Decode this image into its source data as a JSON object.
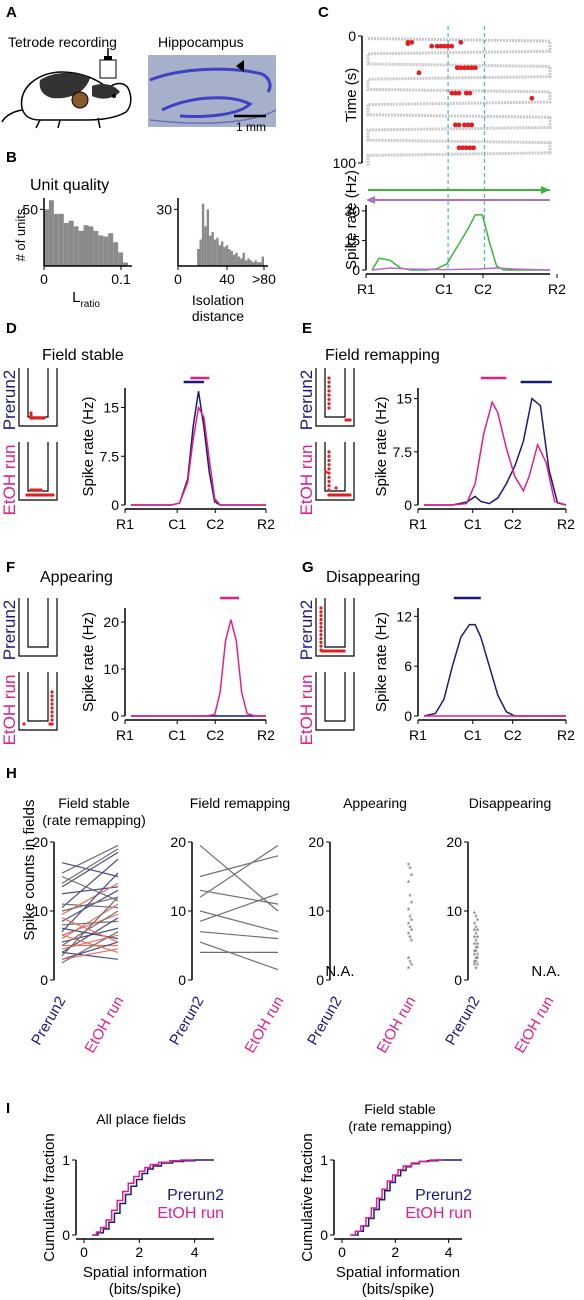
{
  "colors": {
    "prerun": "#1a1a7a",
    "etoh": "#e0208a",
    "bar": "#8a8a8a",
    "green": "#3cb43c",
    "violet": "#b070c0",
    "red": "#e02020",
    "cyan": "#40b8d8",
    "brain": "#4040c0"
  },
  "panelA": {
    "letter": "A",
    "tetrode": "Tetrode recording",
    "hippo": "Hippocampus",
    "scale": "1 mm"
  },
  "panelB": {
    "letter": "B",
    "title": "Unit quality",
    "ylabel": "# of units",
    "lratio_main": "L",
    "lratio_sub": "ratio",
    "iso1": "Isolation",
    "iso2": "distance"
  },
  "panelC": {
    "letter": "C",
    "ylabel_top": "Time (s)",
    "ylabel_bottom": "Spike rate (Hz)"
  },
  "panelD": {
    "letter": "D",
    "title": "Field stable"
  },
  "panelE": {
    "letter": "E",
    "title": "Field remapping"
  },
  "panelF": {
    "letter": "F",
    "title": "Appearing"
  },
  "panelG": {
    "letter": "G",
    "title": "Disappearing"
  },
  "panelH": {
    "letter": "H",
    "ylabel": "Spike counts in fields",
    "na": "N.A."
  },
  "panelI": {
    "letter": "I"
  },
  "labels": {
    "prerun": "Prerun2",
    "etoh": "EtOH run",
    "spike_rate": "Spike rate (Hz)",
    "track": [
      "R1",
      "C1",
      "C2",
      "R2"
    ]
  },
  "chart_data": [
    {
      "id": "B-left",
      "type": "bar",
      "xlabel": "Lratio",
      "ylabel": "# of units",
      "xticks": [
        "0",
        "0.1"
      ],
      "yticks": [
        "50"
      ],
      "ylim": [
        0,
        60
      ],
      "values": [
        50,
        58,
        46,
        46,
        38,
        40,
        35,
        31,
        36,
        35,
        31,
        27,
        26,
        29,
        21,
        12,
        3
      ]
    },
    {
      "id": "B-right",
      "type": "bar",
      "xlabel": "Isolation distance",
      "yticks": [
        "30"
      ],
      "xticks": [
        "0",
        "40",
        ">80"
      ],
      "ylim": [
        0,
        36
      ],
      "values": [
        0,
        0,
        0,
        0,
        0,
        0,
        0,
        0,
        9,
        14,
        33,
        21,
        30,
        16,
        18,
        14,
        15,
        11,
        13,
        10,
        11,
        9,
        8,
        6,
        7,
        5,
        4,
        7,
        3,
        4,
        3,
        2,
        3,
        2,
        2,
        5
      ]
    },
    {
      "id": "C-raster",
      "type": "scatter",
      "ylabel": "Time (s)",
      "yticks": [
        "0",
        "100"
      ],
      "ylim": [
        0,
        100
      ],
      "spikes": [
        [
          0.22,
          5
        ],
        [
          0.22,
          6
        ],
        [
          0.24,
          5
        ],
        [
          0.35,
          8
        ],
        [
          0.38,
          8
        ],
        [
          0.4,
          8
        ],
        [
          0.42,
          8
        ],
        [
          0.44,
          8
        ],
        [
          0.46,
          8
        ],
        [
          0.51,
          5
        ],
        [
          0.49,
          25
        ],
        [
          0.51,
          25
        ],
        [
          0.53,
          25
        ],
        [
          0.55,
          25
        ],
        [
          0.57,
          25
        ],
        [
          0.59,
          25
        ],
        [
          0.28,
          29
        ],
        [
          0.46,
          45
        ],
        [
          0.48,
          45
        ],
        [
          0.5,
          45
        ],
        [
          0.54,
          45
        ],
        [
          0.56,
          45
        ],
        [
          0.9,
          49
        ],
        [
          0.48,
          70
        ],
        [
          0.5,
          70
        ],
        [
          0.53,
          70
        ],
        [
          0.55,
          70
        ],
        [
          0.57,
          70
        ],
        [
          0.5,
          88
        ],
        [
          0.52,
          88
        ],
        [
          0.54,
          88
        ],
        [
          0.56,
          88
        ],
        [
          0.58,
          88
        ]
      ]
    },
    {
      "id": "C-rate",
      "type": "line",
      "ylabel": "Spike rate (Hz)",
      "yticks": [
        "0",
        "15",
        "30"
      ],
      "ylim": [
        0,
        33
      ],
      "xticks": [
        "R1",
        "C1",
        "C2",
        "R2"
      ],
      "series": [
        {
          "color": "green",
          "x": [
            0,
            0.04,
            0.1,
            0.16,
            0.22,
            0.3,
            0.36,
            0.42,
            0.48,
            0.54,
            0.58,
            0.62,
            0.66,
            0.7,
            0.74,
            0.8,
            0.88,
            1
          ],
          "y": [
            0,
            6,
            5,
            1,
            0,
            0,
            0.5,
            3,
            12,
            21,
            28,
            28,
            14,
            2,
            0,
            0,
            0,
            0
          ]
        },
        {
          "color": "violet",
          "x": [
            0,
            0.1,
            0.2,
            0.4,
            0.6,
            0.7,
            0.8,
            1
          ],
          "y": [
            0,
            1,
            0.5,
            0.2,
            0.5,
            1,
            0.5,
            0
          ]
        }
      ]
    },
    {
      "id": "D",
      "type": "line",
      "ylabel": "Spike rate (Hz)",
      "yticks": [
        "0",
        "7.5",
        "15"
      ],
      "ylim": [
        0,
        18
      ],
      "xticks": [
        "R1",
        "C1",
        "C2",
        "R2"
      ],
      "series": [
        {
          "name": "Prerun2",
          "x": [
            0,
            0.2,
            0.3,
            0.36,
            0.42,
            0.46,
            0.5,
            0.54,
            0.58,
            0.62,
            0.66,
            0.7,
            0.8,
            1
          ],
          "y": [
            0,
            0,
            0,
            0.3,
            4,
            12,
            17.5,
            12,
            5,
            0.5,
            0,
            0,
            0,
            0
          ]
        },
        {
          "name": "EtOH run",
          "x": [
            0,
            0.2,
            0.3,
            0.36,
            0.42,
            0.46,
            0.5,
            0.54,
            0.58,
            0.62,
            0.66,
            0.7,
            0.8,
            1
          ],
          "y": [
            0,
            0,
            0,
            0.3,
            3.5,
            10,
            15,
            13.5,
            7,
            1,
            0,
            0,
            0,
            0
          ]
        }
      ],
      "field_bars": [
        {
          "series": "Prerun2",
          "range": [
            0.39,
            0.54
          ]
        },
        {
          "series": "EtOH run",
          "range": [
            0.44,
            0.58
          ]
        }
      ]
    },
    {
      "id": "E",
      "type": "line",
      "ylabel": "Spike rate (Hz)",
      "yticks": [
        "0",
        "7.5",
        "15"
      ],
      "ylim": [
        0,
        16.5
      ],
      "xticks": [
        "R1",
        "C1",
        "C2",
        "R2"
      ],
      "series": [
        {
          "name": "Prerun2",
          "x": [
            0,
            0.2,
            0.3,
            0.36,
            0.4,
            0.46,
            0.52,
            0.58,
            0.64,
            0.7,
            0.76,
            0.82,
            0.88,
            0.94,
            1
          ],
          "y": [
            0,
            0,
            0.4,
            1.2,
            0.5,
            0.2,
            1,
            3,
            5.5,
            9,
            15,
            14,
            5,
            0.3,
            0
          ]
        },
        {
          "name": "EtOH run",
          "x": [
            0,
            0.2,
            0.3,
            0.36,
            0.42,
            0.48,
            0.52,
            0.58,
            0.64,
            0.7,
            0.74,
            0.8,
            0.86,
            0.92,
            1
          ],
          "y": [
            0,
            0,
            0.2,
            3,
            10,
            14.5,
            13,
            8,
            4,
            2,
            4,
            8.5,
            6,
            0.5,
            0
          ]
        }
      ],
      "field_bars": [
        {
          "series": "Prerun2",
          "range": [
            0.68,
            0.9
          ]
        },
        {
          "series": "EtOH run",
          "range": [
            0.4,
            0.58
          ]
        }
      ]
    },
    {
      "id": "F",
      "type": "line",
      "ylabel": "Spike rate (Hz)",
      "yticks": [
        "0",
        "10",
        "20"
      ],
      "ylim": [
        0,
        23
      ],
      "xticks": [
        "R1",
        "C1",
        "C2",
        "R2"
      ],
      "series": [
        {
          "name": "Prerun2",
          "x": [
            0,
            1
          ],
          "y": [
            0,
            0
          ]
        },
        {
          "name": "EtOH run",
          "x": [
            0,
            0.55,
            0.62,
            0.66,
            0.7,
            0.74,
            0.78,
            0.82,
            0.86,
            0.92,
            1
          ],
          "y": [
            0,
            0,
            0.3,
            5,
            16,
            20.5,
            16,
            5,
            0.5,
            0,
            0
          ]
        }
      ],
      "field_bars": [
        {
          "series": "EtOH run",
          "range": [
            0.66,
            0.8
          ]
        }
      ]
    },
    {
      "id": "G",
      "type": "line",
      "ylabel": "Spike rate (Hz)",
      "yticks": [
        "0",
        "6",
        "12"
      ],
      "ylim": [
        0,
        13
      ],
      "xticks": [
        "R1",
        "C1",
        "C2",
        "R2"
      ],
      "series": [
        {
          "name": "Prerun2",
          "x": [
            0,
            0.08,
            0.14,
            0.2,
            0.26,
            0.32,
            0.36,
            0.4,
            0.46,
            0.52,
            0.58,
            0.64,
            0.7,
            1
          ],
          "y": [
            0,
            0.3,
            2,
            6,
            9.5,
            11,
            11,
            9.5,
            6,
            2.5,
            0.5,
            0,
            0,
            0
          ]
        },
        {
          "name": "EtOH run",
          "x": [
            0,
            1
          ],
          "y": [
            0,
            0
          ]
        }
      ],
      "field_bars": [
        {
          "series": "Prerun2",
          "range": [
            0.21,
            0.4
          ]
        }
      ]
    },
    {
      "id": "H1",
      "type": "line",
      "title": "Field stable (rate remapping)",
      "ylim": [
        0,
        20
      ],
      "yticks": [
        "0",
        "10",
        "20"
      ],
      "xticks": [
        "Prerun2",
        "EtOH run"
      ],
      "pairs": [
        [
          15.5,
          19.5,
          "gray"
        ],
        [
          13.5,
          18.5,
          "navy"
        ],
        [
          17,
          15,
          "navy"
        ],
        [
          14,
          19,
          "gray"
        ],
        [
          10.5,
          17.5,
          "navy"
        ],
        [
          15,
          11.5,
          "gray"
        ],
        [
          12.5,
          13.5,
          "navy"
        ],
        [
          11,
          10.5,
          "gray"
        ],
        [
          9.5,
          14,
          "salmon"
        ],
        [
          8.5,
          13,
          "navy"
        ],
        [
          10,
          12,
          "gray"
        ],
        [
          7,
          15.5,
          "navy"
        ],
        [
          6,
          11,
          "salmon"
        ],
        [
          8,
          8.5,
          "gray"
        ],
        [
          6.5,
          9.5,
          "salmon"
        ],
        [
          5.5,
          7.5,
          "navy"
        ],
        [
          5,
          10,
          "gray"
        ],
        [
          4.5,
          6.5,
          "salmon"
        ],
        [
          4,
          9,
          "navy"
        ],
        [
          5,
          5,
          "salmon"
        ],
        [
          3.5,
          12,
          "gray"
        ],
        [
          3,
          5.5,
          "navy"
        ],
        [
          6.5,
          4,
          "salmon"
        ],
        [
          2.5,
          7,
          "gray"
        ],
        [
          4,
          3,
          "navy"
        ],
        [
          3,
          4.5,
          "salmon"
        ],
        [
          7.5,
          6,
          "navy"
        ],
        [
          9,
          5.5,
          "salmon"
        ]
      ]
    },
    {
      "id": "H2",
      "type": "line",
      "title": "Field remapping",
      "ylim": [
        0,
        20
      ],
      "yticks": [
        "0",
        "10",
        "20"
      ],
      "xticks": [
        "Prerun2",
        "EtOH run"
      ],
      "pairs": [
        [
          19.5,
          10,
          "gray"
        ],
        [
          15,
          18,
          "gray"
        ],
        [
          12,
          19.5,
          "gray"
        ],
        [
          10,
          7,
          "gray"
        ],
        [
          13,
          11,
          "gray"
        ],
        [
          8.5,
          12.5,
          "gray"
        ],
        [
          7,
          6,
          "gray"
        ],
        [
          5.5,
          1.5,
          "gray"
        ],
        [
          4,
          4,
          "gray"
        ]
      ]
    },
    {
      "id": "H3",
      "type": "scatter",
      "title": "Appearing",
      "ylim": [
        0,
        20
      ],
      "yticks": [
        "0",
        "10",
        "20"
      ],
      "xticks": [
        "Prerun2",
        "EtOH run"
      ],
      "na": "Prerun2",
      "values": [
        16.5,
        16,
        15,
        14,
        12,
        11,
        10,
        9,
        8.5,
        8,
        7.5,
        7,
        6.5,
        6,
        5.5,
        3,
        2.5,
        2,
        1.5
      ]
    },
    {
      "id": "H4",
      "type": "scatter",
      "title": "Disappearing",
      "ylim": [
        0,
        20
      ],
      "yticks": [
        "0",
        "10",
        "20"
      ],
      "xticks": [
        "Prerun2",
        "EtOH run"
      ],
      "na": "EtOH run",
      "values": [
        9.5,
        9,
        8.5,
        8,
        7.5,
        7,
        7,
        6.5,
        6,
        6,
        5.5,
        5,
        5,
        4.5,
        4.5,
        4,
        4,
        3.5,
        3.5,
        3,
        3,
        2.5,
        2.5,
        2,
        2,
        1.5
      ]
    },
    {
      "id": "I-left",
      "type": "line",
      "title": "All place fields",
      "ylabel": "Cumulative fraction",
      "xlabel": "Spatial information (bits/spike)",
      "xticks": [
        "0",
        "2",
        "4"
      ],
      "yticks": [
        "0",
        "1"
      ],
      "xlim": [
        0,
        4.7
      ],
      "ylim": [
        0,
        1
      ],
      "series": [
        {
          "name": "Prerun2",
          "x": [
            0.3,
            0.5,
            0.7,
            0.9,
            1.1,
            1.3,
            1.5,
            1.7,
            1.9,
            2.1,
            2.3,
            2.5,
            2.8,
            3.2,
            3.6,
            4.0,
            4.7
          ],
          "y": [
            0,
            0.03,
            0.08,
            0.17,
            0.29,
            0.42,
            0.54,
            0.65,
            0.74,
            0.82,
            0.88,
            0.92,
            0.96,
            0.98,
            0.99,
            1,
            1
          ]
        },
        {
          "name": "EtOH run",
          "x": [
            0.3,
            0.45,
            0.6,
            0.8,
            1.0,
            1.2,
            1.4,
            1.6,
            1.8,
            2.0,
            2.2,
            2.4,
            2.7,
            3.1,
            3.5,
            4.0
          ],
          "y": [
            0,
            0.04,
            0.1,
            0.2,
            0.33,
            0.46,
            0.58,
            0.69,
            0.78,
            0.85,
            0.9,
            0.94,
            0.97,
            0.99,
            1,
            1
          ]
        }
      ]
    },
    {
      "id": "I-right",
      "type": "line",
      "title": "Field stable (rate remapping)",
      "ylabel": "Cumulative fraction",
      "xlabel": "Spatial information (bits/spike)",
      "xticks": [
        "0",
        "2",
        "4"
      ],
      "yticks": [
        "0",
        "1"
      ],
      "xlim": [
        0,
        4.5
      ],
      "ylim": [
        0,
        1
      ],
      "series": [
        {
          "name": "Prerun2",
          "x": [
            0.4,
            0.6,
            0.8,
            1.0,
            1.2,
            1.4,
            1.6,
            1.8,
            2.0,
            2.2,
            2.4,
            2.6,
            2.9,
            3.2,
            3.6,
            4.5
          ],
          "y": [
            0,
            0.05,
            0.12,
            0.22,
            0.34,
            0.47,
            0.59,
            0.7,
            0.79,
            0.86,
            0.91,
            0.95,
            0.98,
            0.99,
            1,
            1
          ]
        },
        {
          "name": "EtOH run",
          "x": [
            0.3,
            0.5,
            0.7,
            0.9,
            1.1,
            1.3,
            1.5,
            1.7,
            1.9,
            2.1,
            2.3,
            2.6,
            2.9,
            3.3,
            3.8
          ],
          "y": [
            0,
            0.05,
            0.12,
            0.23,
            0.36,
            0.49,
            0.61,
            0.72,
            0.8,
            0.87,
            0.92,
            0.96,
            0.98,
            1,
            1
          ]
        }
      ]
    }
  ]
}
